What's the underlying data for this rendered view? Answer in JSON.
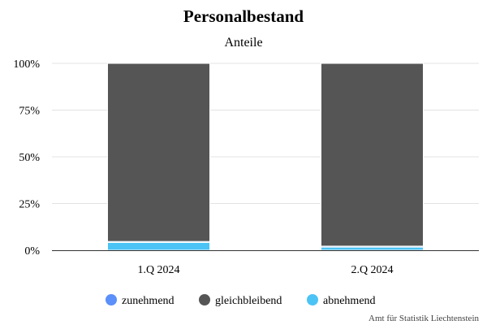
{
  "chart_data": {
    "type": "bar",
    "stacked": "percent",
    "title": "Personalbestand",
    "subtitle": "Anteile",
    "categories": [
      "1.Q 2024",
      "2.Q 2024"
    ],
    "yticks": [
      "0%",
      "25%",
      "50%",
      "75%",
      "100%"
    ],
    "ylim": [
      0,
      100
    ],
    "grid": true,
    "legend_position": "bottom",
    "series": [
      {
        "name": "zunehmend",
        "color": "#5b8ff9",
        "values": [
          0.5,
          0.5
        ]
      },
      {
        "name": "gleichbleibend",
        "color": "#555555",
        "values": [
          95.3,
          97.8
        ]
      },
      {
        "name": "abnehmend",
        "color": "#4cc3f5",
        "values": [
          4.2,
          1.7
        ]
      }
    ],
    "credit": "Amt für Statistik Liechtenstein"
  }
}
